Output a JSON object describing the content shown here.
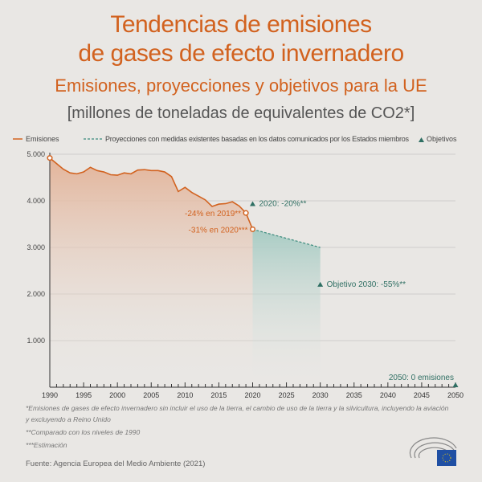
{
  "title_line1": "Tendencias de emisiones",
  "title_line2": "de gases de efecto invernadero",
  "subtitle": "Emisiones, proyecciones y objetivos para la UE",
  "unit": "[millones de toneladas de equivalentes de CO2*]",
  "colors": {
    "emissions": "#d2621f",
    "projection": "#3a8a7c",
    "target": "#2f6f63"
  },
  "chart_data": {
    "type": "line",
    "legend": {
      "placement": "top",
      "entries": [
        "Emisiones",
        "Proyecciones con medidas existentes basadas en los datos comunicados por los Estados miembros",
        "Objetivos"
      ]
    },
    "xlim": [
      1990,
      2050
    ],
    "ylim": [
      0,
      5000
    ],
    "x_ticks": [
      "1990",
      "1995",
      "2000",
      "2005",
      "2010",
      "2015",
      "2020",
      "2025",
      "2030",
      "2035",
      "2040",
      "2045",
      "2050"
    ],
    "y_ticks": [
      "1.000",
      "2.000",
      "3.000",
      "4.000",
      "5.000"
    ],
    "grid": true,
    "series": [
      {
        "name": "Emisiones",
        "x": [
          1990,
          1991,
          1992,
          1993,
          1994,
          1995,
          1996,
          1997,
          1998,
          1999,
          2000,
          2001,
          2002,
          2003,
          2004,
          2005,
          2006,
          2007,
          2008,
          2009,
          2010,
          2011,
          2012,
          2013,
          2014,
          2015,
          2016,
          2017,
          2018,
          2019,
          2020
        ],
        "y": [
          4920,
          4800,
          4680,
          4600,
          4580,
          4620,
          4720,
          4650,
          4620,
          4560,
          4550,
          4600,
          4580,
          4660,
          4670,
          4650,
          4650,
          4620,
          4520,
          4200,
          4290,
          4180,
          4100,
          4020,
          3880,
          3930,
          3940,
          3980,
          3890,
          3740,
          3390
        ]
      },
      {
        "name": "Proyecciones con medidas existentes basadas en los datos comunicados por los Estados miembros",
        "x": [
          2020,
          2030
        ],
        "y": [
          3390,
          3000
        ]
      }
    ],
    "targets": [
      {
        "x": 2020,
        "y": 3940,
        "label": "2020: -20%**"
      },
      {
        "x": 2030,
        "y": 2210,
        "label": "Objetivo 2030: -55%**"
      },
      {
        "x": 2050,
        "y": 0,
        "label": "2050: 0 emisiones"
      }
    ],
    "annotations": [
      {
        "x": 2019,
        "y": 3740,
        "label": "-24% en 2019**"
      },
      {
        "x": 2020,
        "y": 3390,
        "label": "-31% en 2020***"
      }
    ]
  },
  "footnotes": [
    "*Emisiones de gases de efecto invernadero sin incluir el uso de la tierra, el cambio de uso de la tierra y la silvicultura, incluyendo la aviación",
    "y excluyendo a Reino Unido",
    "**Comparado con los niveles de 1990",
    "***Estimación"
  ],
  "source": "Fuente: Agencia Europea del Medio Ambiente (2021)"
}
